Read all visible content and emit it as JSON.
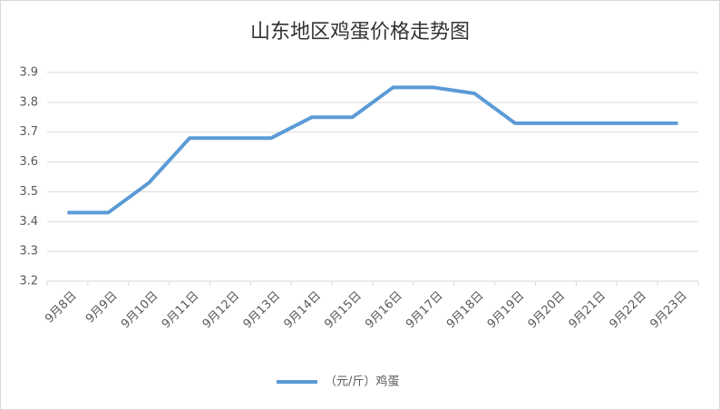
{
  "chart_data": {
    "type": "line",
    "title": "山东地区鸡蛋价格走势图",
    "categories": [
      "9月8日",
      "9月9日",
      "9月10日",
      "9月11日",
      "9月12日",
      "9月13日",
      "9月14日",
      "9月15日",
      "9月16日",
      "9月17日",
      "9月18日",
      "9月19日",
      "9月20日",
      "9月21日",
      "9月22日",
      "9月23日"
    ],
    "series": [
      {
        "name": "（元/斤）鸡蛋",
        "color": "#5b9bd5",
        "values": [
          3.43,
          3.43,
          3.53,
          3.68,
          3.68,
          3.68,
          3.75,
          3.75,
          3.85,
          3.85,
          3.83,
          3.73,
          3.73,
          3.73,
          3.73,
          3.73
        ]
      }
    ],
    "ylim": [
      3.2,
      3.9
    ],
    "yticks": [
      3.2,
      3.3,
      3.4,
      3.5,
      3.6,
      3.7,
      3.8,
      3.9
    ],
    "grid": true,
    "legend": "bottom"
  }
}
